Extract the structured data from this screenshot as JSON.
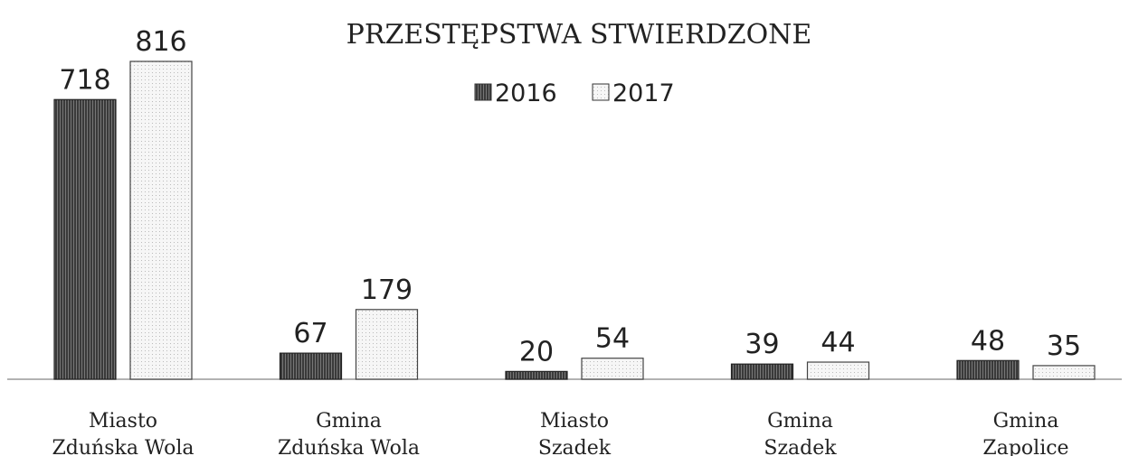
{
  "chart_data": {
    "type": "bar",
    "title": "PRZESTĘPSTWA STWIERDZONE",
    "categories": [
      [
        "Miasto",
        "Zduńska Wola"
      ],
      [
        "Gmina",
        "Zduńska Wola"
      ],
      [
        "Miasto",
        "Szadek"
      ],
      [
        "Gmina",
        "Szadek"
      ],
      [
        "Gmina",
        "Zapolice"
      ]
    ],
    "series": [
      {
        "name": "2016",
        "color": "#3a3a3a",
        "values": [
          718,
          67,
          20,
          39,
          48
        ]
      },
      {
        "name": "2017",
        "color": "#f2f2f2",
        "values": [
          816,
          179,
          54,
          44,
          35
        ]
      }
    ],
    "legend": "top"
  }
}
